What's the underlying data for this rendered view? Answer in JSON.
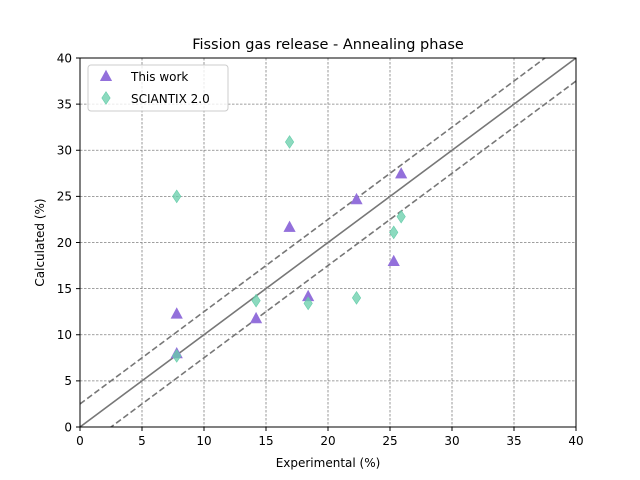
{
  "chart_data": {
    "type": "scatter",
    "title": "Fission gas release - Annealing phase",
    "xlabel": "Experimental (%)",
    "ylabel": "Calculated (%)",
    "xlim": [
      0,
      40
    ],
    "ylim": [
      0,
      40
    ],
    "xticks": [
      0,
      5,
      10,
      15,
      20,
      25,
      30,
      35,
      40
    ],
    "yticks": [
      0,
      5,
      10,
      15,
      20,
      25,
      30,
      35,
      40
    ],
    "grid": true,
    "legend_position": "top-left",
    "reference_lines": {
      "identity": {
        "slope": 1,
        "intercept": 0,
        "style": "solid",
        "color": "#777777"
      },
      "upper_band": {
        "slope": 1,
        "intercept": 2.5,
        "style": "dashed",
        "color": "#777777"
      },
      "lower_band": {
        "slope": 1,
        "intercept": -2.5,
        "style": "dashed",
        "color": "#777777"
      }
    },
    "series": [
      {
        "name": "This work",
        "marker": "triangle",
        "color": "#9370DB",
        "points": [
          {
            "x": 7.8,
            "y": 12.3
          },
          {
            "x": 7.8,
            "y": 8.0
          },
          {
            "x": 14.2,
            "y": 11.8
          },
          {
            "x": 16.9,
            "y": 21.7
          },
          {
            "x": 18.4,
            "y": 14.2
          },
          {
            "x": 22.3,
            "y": 24.7
          },
          {
            "x": 25.3,
            "y": 18.0
          },
          {
            "x": 25.9,
            "y": 27.5
          }
        ]
      },
      {
        "name": "SCIANTIX 2.0",
        "marker": "diamond",
        "color": "#66CDAA",
        "points": [
          {
            "x": 7.8,
            "y": 25.0
          },
          {
            "x": 7.8,
            "y": 7.7
          },
          {
            "x": 14.2,
            "y": 13.7
          },
          {
            "x": 16.9,
            "y": 30.9
          },
          {
            "x": 18.4,
            "y": 13.4
          },
          {
            "x": 22.3,
            "y": 14.0
          },
          {
            "x": 25.3,
            "y": 21.1
          },
          {
            "x": 25.9,
            "y": 22.8
          }
        ]
      }
    ]
  }
}
